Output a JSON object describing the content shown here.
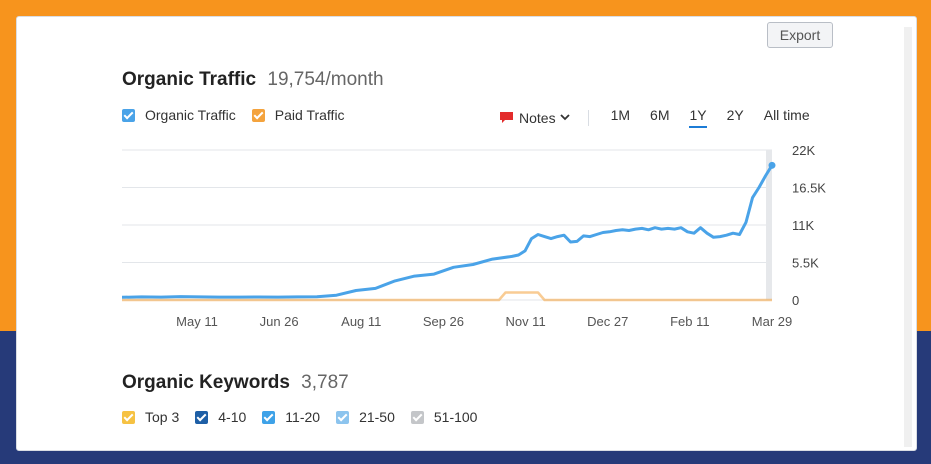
{
  "export_label": "Export",
  "traffic": {
    "title": "Organic Traffic",
    "value": "19,754/month",
    "legend": [
      {
        "label": "Organic Traffic",
        "color": "#4aa3e8"
      },
      {
        "label": "Paid Traffic",
        "color": "#f4a33d"
      }
    ],
    "notes_label": "Notes",
    "periods": [
      "1M",
      "6M",
      "1Y",
      "2Y",
      "All time"
    ],
    "active_period": "1Y"
  },
  "chart_data": {
    "type": "line",
    "x_tick_labels": [
      "May 11",
      "Jun 26",
      "Aug 11",
      "Sep 26",
      "Nov 11",
      "Dec 27",
      "Feb 11",
      "Mar 29"
    ],
    "y_tick_labels": [
      "22K",
      "16.5K",
      "11K",
      "5.5K",
      "0"
    ],
    "ylim": [
      0,
      22000
    ],
    "grid": true,
    "series": [
      {
        "name": "Organic Traffic",
        "color": "#4aa3e8",
        "x": [
          0,
          3,
          6,
          9,
          12,
          15,
          18,
          21,
          24,
          27,
          30,
          33,
          36,
          39,
          42,
          45,
          48,
          51,
          54,
          57,
          60,
          61,
          62,
          63,
          64,
          65,
          66,
          67,
          68,
          69,
          70,
          71,
          72,
          73,
          74,
          75,
          76,
          77,
          78,
          79,
          80,
          81,
          82,
          83,
          84,
          85,
          86,
          87,
          88,
          89,
          90,
          91,
          92,
          93,
          94,
          95,
          96,
          97,
          98,
          99,
          100
        ],
        "values": [
          400,
          450,
          420,
          500,
          450,
          430,
          420,
          440,
          430,
          460,
          480,
          700,
          1400,
          1700,
          2800,
          3500,
          3800,
          4800,
          5200,
          6000,
          6400,
          6600,
          7200,
          9000,
          9600,
          9300,
          9000,
          9300,
          9500,
          8500,
          8600,
          9400,
          9300,
          9600,
          9900,
          10000,
          10200,
          10300,
          10200,
          10400,
          10500,
          10300,
          10600,
          10400,
          10500,
          10400,
          10600,
          10000,
          9800,
          10600,
          9800,
          9200,
          9300,
          9500,
          9800,
          9600,
          11400,
          15000,
          16500,
          18200,
          19754
        ]
      },
      {
        "name": "Paid Traffic",
        "color": "#f4a33d",
        "x": [
          0,
          58,
          59,
          62,
          64,
          65,
          66,
          100
        ],
        "values": [
          0,
          0,
          1100,
          1100,
          1100,
          0,
          0,
          0
        ]
      }
    ]
  },
  "keywords": {
    "title": "Organic Keywords",
    "value": "3,787",
    "legend": [
      {
        "label": "Top 3",
        "color": "#f6c243"
      },
      {
        "label": "4-10",
        "color": "#1e5fa6"
      },
      {
        "label": "11-20",
        "color": "#3ea2e8"
      },
      {
        "label": "21-50",
        "color": "#8cc4ee"
      },
      {
        "label": "51-100",
        "color": "#c4c6c9"
      }
    ]
  }
}
